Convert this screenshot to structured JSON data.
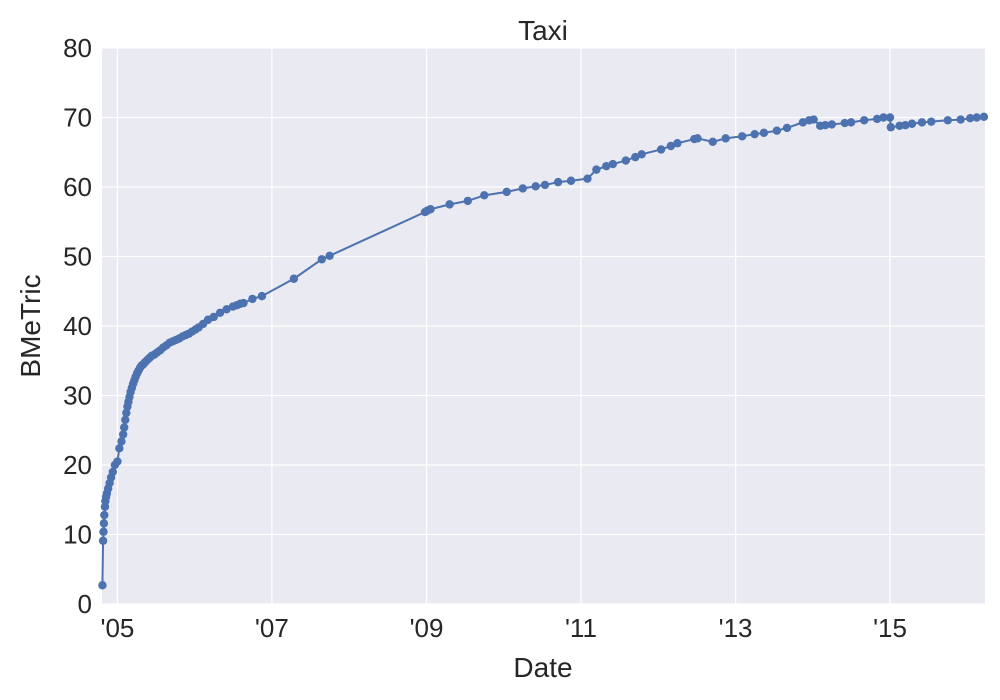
{
  "chart_data": {
    "type": "line",
    "title": "Taxi",
    "xlabel": "Date",
    "ylabel": "BMeTric",
    "xlim": [
      "2004-10-20",
      "2016-03-25"
    ],
    "ylim": [
      0,
      80
    ],
    "grid": true,
    "markers": true,
    "color": "#4c72b0",
    "x_ticks": [
      {
        "value": "2005-01-01",
        "label": "'05"
      },
      {
        "value": "2007-01-01",
        "label": "'07"
      },
      {
        "value": "2009-01-01",
        "label": "'09"
      },
      {
        "value": "2011-01-01",
        "label": "'11"
      },
      {
        "value": "2013-01-01",
        "label": "'13"
      },
      {
        "value": "2015-01-01",
        "label": "'15"
      }
    ],
    "y_ticks": [
      0,
      10,
      20,
      30,
      40,
      50,
      60,
      70,
      80
    ],
    "series": [
      {
        "x": [
          "2004-10-22",
          "2004-10-25",
          "2004-10-27",
          "2004-10-29",
          "2004-10-31",
          "2004-11-03",
          "2004-11-05",
          "2004-11-08",
          "2004-11-12",
          "2004-11-18",
          "2004-11-25",
          "2004-12-02",
          "2004-12-10",
          "2004-12-20",
          "2005-01-01",
          "2005-01-10",
          "2005-01-20",
          "2005-01-28",
          "2005-02-02",
          "2005-02-07",
          "2005-02-12",
          "2005-02-17",
          "2005-02-22",
          "2005-02-27",
          "2005-03-04",
          "2005-03-10",
          "2005-03-16",
          "2005-03-22",
          "2005-03-28",
          "2005-04-04",
          "2005-04-11",
          "2005-04-18",
          "2005-04-25",
          "2005-05-03",
          "2005-05-12",
          "2005-05-22",
          "2005-06-01",
          "2005-06-12",
          "2005-06-25",
          "2005-07-08",
          "2005-07-22",
          "2005-08-05",
          "2005-08-20",
          "2005-09-05",
          "2005-09-20",
          "2005-10-05",
          "2005-10-20",
          "2005-11-05",
          "2005-11-20",
          "2005-12-05",
          "2005-12-20",
          "2006-01-05",
          "2006-01-20",
          "2006-02-10",
          "2006-03-05",
          "2006-04-01",
          "2006-05-01",
          "2006-06-01",
          "2006-07-01",
          "2006-07-20",
          "2006-08-05",
          "2006-08-20",
          "2006-10-01",
          "2006-11-15",
          "2007-04-15",
          "2007-08-25",
          "2007-10-01",
          "2008-12-25",
          "2009-01-05",
          "2009-01-20",
          "2009-04-20",
          "2009-07-15",
          "2009-10-01",
          "2010-01-15",
          "2010-04-01",
          "2010-06-01",
          "2010-07-15",
          "2010-09-15",
          "2010-11-15",
          "2011-02-01",
          "2011-03-15",
          "2011-05-01",
          "2011-06-01",
          "2011-08-01",
          "2011-09-15",
          "2011-10-15",
          "2012-01-15",
          "2012-03-01",
          "2012-04-01",
          "2012-06-20",
          "2012-07-05",
          "2012-09-15",
          "2012-11-15",
          "2013-02-01",
          "2013-04-01",
          "2013-05-15",
          "2013-07-15",
          "2013-09-01",
          "2013-11-15",
          "2013-12-15",
          "2014-01-05",
          "2014-02-05",
          "2014-03-01",
          "2014-04-01",
          "2014-06-01",
          "2014-07-01",
          "2014-09-01",
          "2014-11-01",
          "2014-12-01",
          "2015-01-01",
          "2015-01-05",
          "2015-02-15",
          "2015-03-15",
          "2015-04-15",
          "2015-06-01",
          "2015-07-15",
          "2015-10-01",
          "2015-12-01",
          "2016-01-15",
          "2016-02-15",
          "2016-03-20"
        ],
        "y": [
          2.7,
          9.1,
          10.4,
          11.6,
          12.8,
          14.0,
          14.8,
          15.4,
          15.9,
          16.6,
          17.4,
          18.2,
          19.0,
          20.0,
          20.5,
          22.4,
          23.4,
          24.4,
          25.4,
          26.5,
          27.5,
          28.4,
          29.1,
          29.8,
          30.5,
          31.1,
          31.7,
          32.2,
          32.7,
          33.2,
          33.6,
          34.0,
          34.3,
          34.5,
          34.8,
          35.1,
          35.4,
          35.7,
          35.9,
          36.2,
          36.5,
          36.9,
          37.2,
          37.6,
          37.8,
          38.0,
          38.2,
          38.5,
          38.7,
          38.9,
          39.2,
          39.5,
          39.8,
          40.3,
          40.9,
          41.3,
          41.9,
          42.4,
          42.8,
          43.0,
          43.2,
          43.3,
          43.9,
          44.3,
          46.8,
          49.6,
          50.1,
          56.4,
          56.6,
          56.8,
          57.5,
          58.0,
          58.8,
          59.3,
          59.8,
          60.1,
          60.3,
          60.7,
          60.9,
          61.2,
          62.5,
          63.0,
          63.3,
          63.8,
          64.3,
          64.7,
          65.4,
          65.9,
          66.3,
          66.9,
          67.0,
          66.5,
          67.0,
          67.3,
          67.6,
          67.8,
          68.1,
          68.5,
          69.3,
          69.6,
          69.7,
          68.8,
          68.9,
          69.0,
          69.2,
          69.3,
          69.6,
          69.8,
          70.0,
          70.0,
          68.6,
          68.8,
          68.9,
          69.1,
          69.3,
          69.4,
          69.6,
          69.7,
          69.9,
          70.0,
          70.1
        ]
      }
    ]
  }
}
